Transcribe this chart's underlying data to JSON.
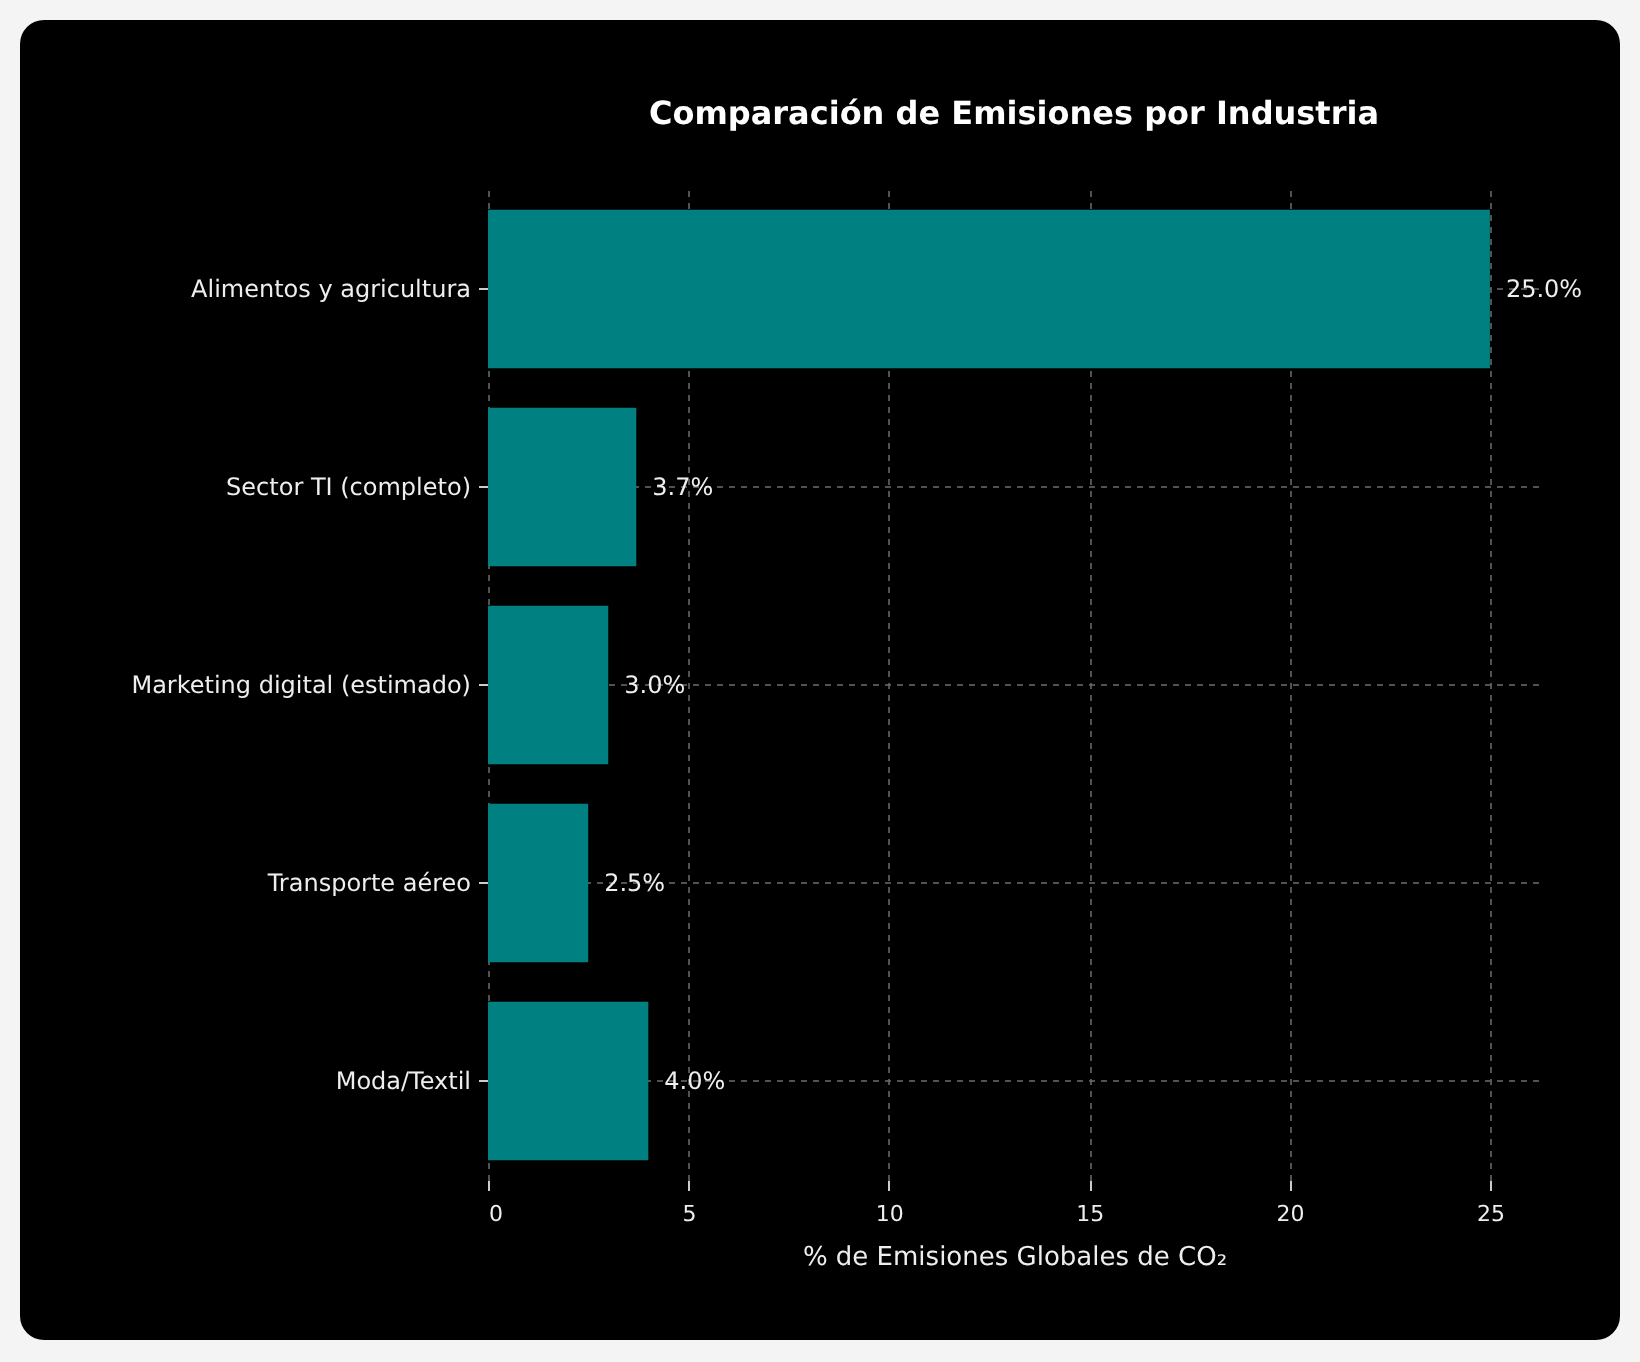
{
  "chart_data": {
    "type": "bar",
    "orientation": "horizontal",
    "title": "Comparación de Emisiones por Industria",
    "xlabel": "% de Emisiones Globales de CO₂",
    "categories": [
      "Alimentos y agricultura",
      "Sector TI (completo)",
      "Marketing digital (estimado)",
      "Transporte aéreo",
      "Moda/Textil"
    ],
    "values": [
      25,
      3.7,
      3,
      2.5,
      4
    ],
    "value_labels": [
      "25.0%",
      "3.7%",
      "3.0%",
      "2.5%",
      "4.0%"
    ],
    "color": "#008080",
    "xlim": [
      0,
      26.25
    ],
    "xticks": [
      0,
      5,
      10,
      15,
      20,
      25
    ],
    "grid": true
  }
}
